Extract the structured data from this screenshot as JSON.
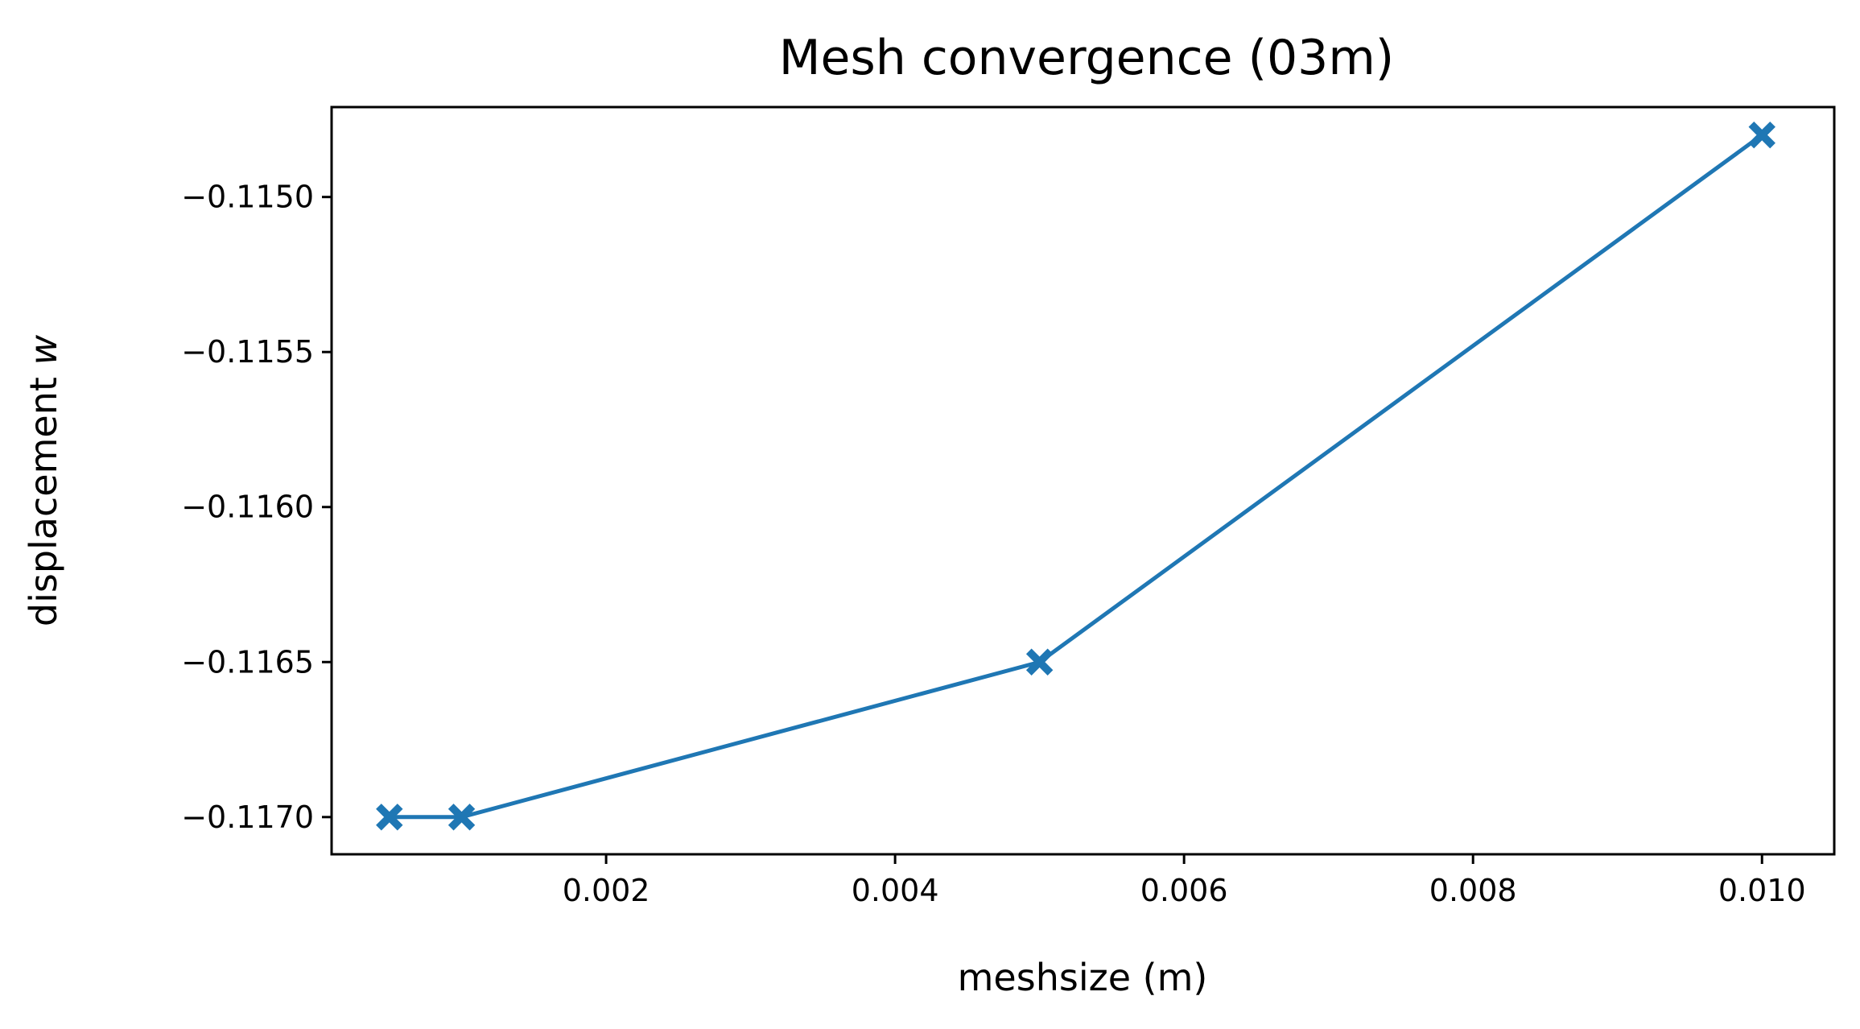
{
  "chart_data": {
    "type": "line",
    "title": "Mesh convergence (03m)",
    "xlabel": "meshsize (m)",
    "ylabel": "displacement ",
    "ylabel_symbol": "w",
    "xlim": [
      0.0001,
      0.0105
    ],
    "ylim": [
      -0.11712,
      -0.11471
    ],
    "x_ticks": [
      0.002,
      0.004,
      0.006,
      0.008,
      0.01
    ],
    "x_tick_labels": [
      "0.002",
      "0.004",
      "0.006",
      "0.008",
      "0.010"
    ],
    "y_ticks": [
      -0.115,
      -0.1155,
      -0.116,
      -0.1165,
      -0.117
    ],
    "y_tick_labels": [
      "−0.1150",
      "−0.1155",
      "−0.1160",
      "−0.1165",
      "−0.1170"
    ],
    "grid": false,
    "series": [
      {
        "x": [
          0.0005,
          0.001,
          0.005,
          0.01
        ],
        "y": [
          -0.117,
          -0.117,
          -0.1165,
          -0.1148
        ],
        "color": "#1f77b4",
        "marker": "X"
      }
    ]
  }
}
